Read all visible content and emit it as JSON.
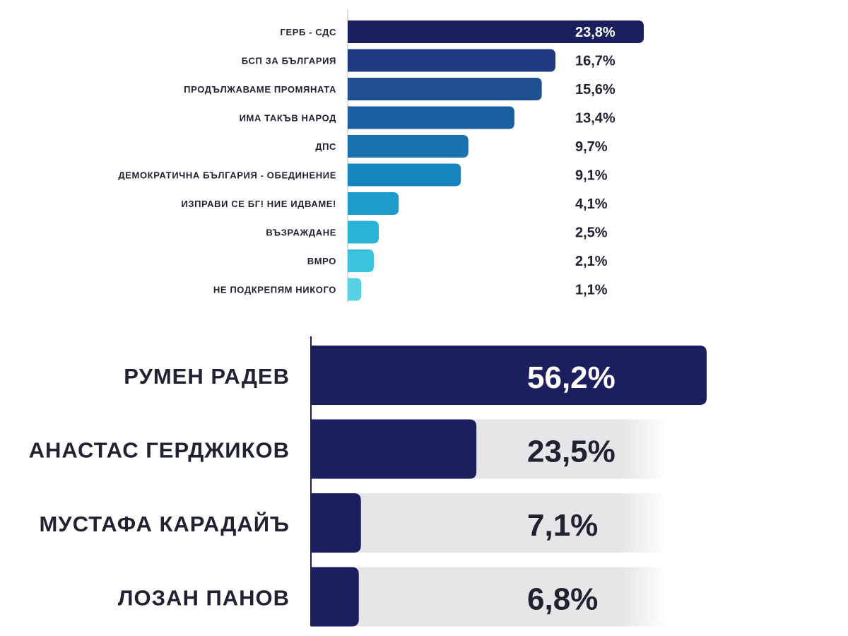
{
  "chart_data": [
    {
      "type": "bar",
      "orientation": "horizontal",
      "categories": [
        "ГЕРБ - СДС",
        "БСП ЗА БЪЛГАРИЯ",
        "ПРОДЪЛЖАВАМЕ ПРОМЯНАТА",
        "ИМА ТАКЪВ НАРОД",
        "ДПС",
        "ДЕМОКРАТИЧНА БЪЛГАРИЯ - ОБЕДИНЕНИЕ",
        "ИЗПРАВИ СЕ БГ! НИЕ ИДВАМЕ!",
        "ВЪЗРАЖДАНЕ",
        "ВМРО",
        "НЕ ПОДКРЕПЯМ НИКОГО"
      ],
      "values": [
        23.8,
        16.7,
        15.6,
        13.4,
        9.7,
        9.1,
        4.1,
        2.5,
        2.1,
        1.1
      ],
      "value_labels": [
        "23,8%",
        "16,7%",
        "15,6%",
        "13,4%",
        "9,7%",
        "9,1%",
        "4,1%",
        "2,5%",
        "2,1%",
        "1,1%"
      ],
      "unit": "%",
      "title": "",
      "xlabel": "",
      "ylabel": "",
      "grid": false,
      "legend": "none",
      "colors": [
        "#1c1f5e",
        "#1e3a80",
        "#1d4f91",
        "#1a5fa0",
        "#1872b0",
        "#1785bd",
        "#1b9ccb",
        "#2bb3d6",
        "#3bc2de",
        "#5ad0e5"
      ]
    },
    {
      "type": "bar",
      "orientation": "horizontal",
      "categories": [
        "РУМЕН РАДЕВ",
        "АНАСТАС ГЕРДЖИКОВ",
        "МУСТАФА КАРАДАЙЪ",
        "ЛОЗАН ПАНОВ"
      ],
      "values": [
        56.2,
        23.5,
        7.1,
        6.8
      ],
      "value_labels": [
        "56,2%",
        "23,5%",
        "7,1%",
        "6,8%"
      ],
      "unit": "%",
      "title": "",
      "xlabel": "",
      "ylabel": "",
      "grid": false,
      "legend": "none",
      "colors": {
        "bar": "#1c1f5e",
        "track": "#e6e6e8",
        "label_on_bar": "#ffffff",
        "label": "#1f2230"
      }
    }
  ]
}
